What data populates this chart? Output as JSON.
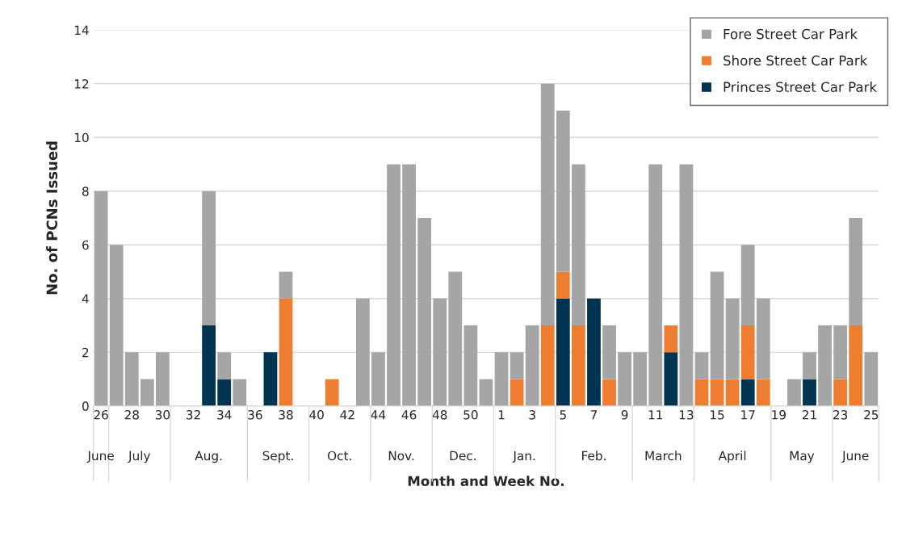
{
  "chart_data": {
    "type": "bar",
    "stacked": true,
    "xlabel": "Month and Week No.",
    "ylabel": "No. of PCNs Issued",
    "categories": [
      "26",
      null,
      "28",
      null,
      "30",
      null,
      "32",
      null,
      "34",
      null,
      "36",
      null,
      "38",
      null,
      "40",
      null,
      "42",
      null,
      "44",
      null,
      "46",
      null,
      "48",
      null,
      "50",
      null,
      "1",
      null,
      "3",
      null,
      "5",
      null,
      "7",
      null,
      "9",
      null,
      "11",
      null,
      "13",
      null,
      "15",
      null,
      "17",
      null,
      "19",
      null,
      "21",
      null,
      "23",
      null,
      "25"
    ],
    "series": [
      {
        "name": "Princes Street Car Park",
        "color": "#003450",
        "values": [
          0,
          0,
          0,
          0,
          0,
          0,
          0,
          3,
          1,
          0,
          0,
          2,
          0,
          0,
          0,
          0,
          0,
          0,
          0,
          0,
          0,
          0,
          0,
          0,
          0,
          0,
          0,
          0,
          0,
          0,
          4,
          0,
          4,
          0,
          0,
          0,
          0,
          2,
          0,
          0,
          0,
          0,
          1,
          0,
          0,
          0,
          1,
          0,
          0,
          0,
          0
        ]
      },
      {
        "name": "Shore Street Car Park",
        "color": "#ed7d31",
        "values": [
          0,
          0,
          0,
          0,
          0,
          0,
          0,
          0,
          0,
          0,
          0,
          0,
          4,
          0,
          0,
          1,
          0,
          0,
          0,
          0,
          0,
          0,
          0,
          0,
          0,
          0,
          0,
          1,
          0,
          3,
          1,
          3,
          0,
          1,
          0,
          0,
          0,
          1,
          0,
          1,
          1,
          1,
          2,
          1,
          0,
          0,
          0,
          0,
          1,
          3,
          0
        ]
      },
      {
        "name": "Fore Street Car Park",
        "color": "#a5a5a5",
        "values": [
          8,
          6,
          2,
          1,
          2,
          0,
          0,
          5,
          1,
          1,
          0,
          0,
          1,
          0,
          0,
          0,
          0,
          4,
          2,
          9,
          9,
          7,
          4,
          5,
          3,
          1,
          2,
          1,
          3,
          9,
          6,
          6,
          0,
          2,
          2,
          2,
          9,
          0,
          9,
          1,
          4,
          3,
          3,
          3,
          0,
          1,
          1,
          3,
          2,
          4,
          2
        ]
      }
    ],
    "annotations": [
      "June",
      "July",
      "Aug.",
      "Sept.",
      "Oct.",
      "Nov.",
      "Dec.",
      "Jan.",
      "Feb.",
      "March",
      "April",
      "May",
      "June"
    ],
    "ylim": [
      0,
      14
    ],
    "yticks": [
      0,
      2,
      4,
      6,
      8,
      10,
      12,
      14
    ],
    "grid": "y",
    "legend": "top right"
  }
}
